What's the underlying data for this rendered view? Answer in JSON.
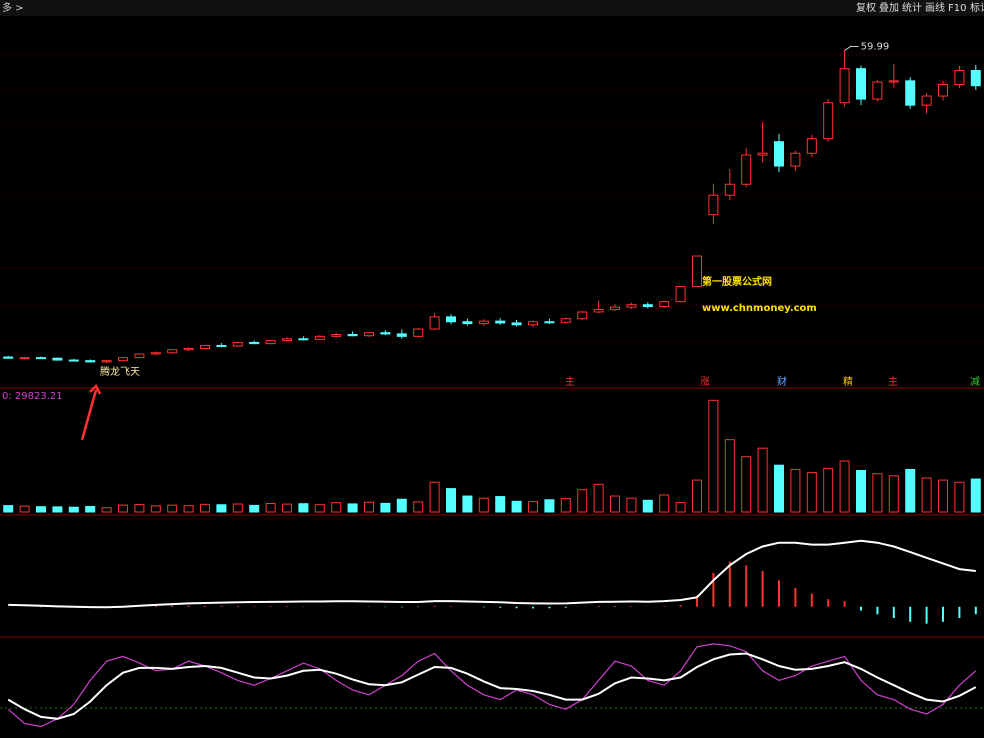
{
  "toolbar": {
    "left": "多 >",
    "buttons": [
      "复权",
      "叠加",
      "统计",
      "画线",
      "F10",
      "标记"
    ]
  },
  "chart_data": [
    {
      "type": "candlestick",
      "max_label": "59.99",
      "signal_label": "腾龙飞天",
      "watermark": [
        "第一股票公式网",
        "www.chnmoney.com"
      ],
      "events": [
        "主",
        "涨",
        "财",
        "精",
        "主",
        "减"
      ],
      "up_color": "#ff3232",
      "down_color": "#54ffff",
      "ylim": [
        5,
        65
      ],
      "open": [
        9.6,
        9.4,
        9.5,
        9.4,
        9.1,
        9.0,
        8.8,
        9.0,
        9.5,
        10.1,
        10.3,
        10.8,
        11.0,
        11.5,
        11.4,
        12.0,
        11.8,
        12.3,
        12.6,
        12.5,
        13.0,
        13.3,
        13.1,
        13.6,
        13.4,
        13.0,
        14.2,
        16.2,
        15.4,
        15.1,
        15.5,
        15.2,
        14.9,
        15.4,
        15.3,
        15.9,
        17.0,
        17.4,
        17.8,
        18.2,
        17.9,
        18.7,
        21.2,
        33.0,
        36.2,
        38.0,
        42.8,
        45.0,
        41.0,
        43.1,
        45.5,
        51.4,
        57.0,
        52.0,
        54.8,
        55.0,
        51.0,
        52.5,
        54.4,
        56.7
      ],
      "high": [
        9.8,
        9.6,
        9.7,
        9.5,
        9.3,
        9.2,
        9.1,
        9.6,
        10.2,
        10.5,
        10.9,
        11.2,
        11.6,
        11.9,
        12.1,
        12.3,
        12.4,
        12.8,
        13.0,
        13.2,
        13.6,
        13.8,
        13.7,
        14.0,
        14.1,
        14.4,
        16.8,
        16.6,
        15.9,
        15.8,
        16.0,
        15.7,
        15.6,
        15.9,
        16.1,
        17.2,
        18.9,
        18.3,
        18.5,
        18.6,
        18.9,
        21.3,
        26.2,
        38.1,
        40.5,
        44.0,
        48.2,
        46.3,
        43.5,
        46.1,
        52.0,
        59.99,
        57.5,
        55.2,
        57.8,
        55.6,
        53.0,
        55.0,
        57.5,
        57.6
      ],
      "low": [
        9.3,
        9.2,
        9.3,
        9.0,
        8.9,
        8.7,
        8.6,
        8.9,
        9.4,
        9.9,
        10.1,
        10.6,
        10.9,
        11.2,
        11.3,
        11.7,
        11.7,
        12.1,
        12.3,
        12.4,
        12.8,
        13.0,
        12.9,
        13.2,
        12.6,
        12.9,
        14.0,
        15.0,
        14.8,
        14.7,
        14.9,
        14.6,
        14.5,
        15.0,
        15.1,
        15.7,
        16.8,
        17.2,
        17.5,
        17.6,
        17.7,
        18.6,
        21.2,
        31.5,
        35.4,
        37.5,
        41.6,
        40.0,
        40.2,
        42.5,
        45.0,
        50.8,
        51.0,
        51.6,
        53.9,
        50.4,
        49.6,
        51.8,
        53.8,
        53.5
      ],
      "close": [
        9.4,
        9.5,
        9.4,
        9.1,
        9.0,
        8.8,
        9.0,
        9.5,
        10.1,
        10.3,
        10.8,
        11.0,
        11.5,
        11.4,
        12.0,
        11.8,
        12.3,
        12.6,
        12.5,
        13.0,
        13.3,
        13.1,
        13.6,
        13.4,
        13.0,
        14.2,
        16.2,
        15.4,
        15.1,
        15.5,
        15.2,
        14.9,
        15.4,
        15.3,
        15.9,
        17.0,
        17.4,
        17.8,
        18.2,
        17.9,
        18.7,
        21.2,
        26.2,
        36.2,
        38.0,
        42.8,
        43.1,
        41.0,
        43.1,
        45.5,
        51.4,
        57.0,
        52.0,
        54.8,
        55.0,
        51.0,
        52.5,
        54.4,
        56.7,
        54.2
      ]
    },
    {
      "type": "volume",
      "label": "0: 29823.21",
      "ylim": [
        0,
        110000
      ],
      "values": [
        6000,
        5500,
        5000,
        4800,
        4500,
        5200,
        4000,
        6500,
        7000,
        5800,
        6400,
        5900,
        7200,
        6800,
        7500,
        6200,
        8000,
        7400,
        7800,
        6900,
        8800,
        7600,
        9200,
        8100,
        12000,
        9500,
        28000,
        22000,
        15000,
        13000,
        14500,
        10000,
        9800,
        11500,
        12600,
        21000,
        26000,
        15000,
        13000,
        11000,
        16000,
        9000,
        30000,
        105000,
        68000,
        52000,
        60000,
        44000,
        40000,
        37000,
        41000,
        48000,
        39000,
        36000,
        34000,
        40000,
        32000,
        30000,
        28000,
        31000
      ]
    },
    {
      "type": "macd",
      "ylim": [
        -1.5,
        4.5
      ],
      "line_color": "#ffffff",
      "pos_color": "#ff3232",
      "neg_color": "#54ffff",
      "dif": [
        0.1,
        0.08,
        0.05,
        0.02,
        0.0,
        -0.02,
        -0.03,
        0.0,
        0.05,
        0.1,
        0.14,
        0.18,
        0.2,
        0.22,
        0.24,
        0.25,
        0.26,
        0.27,
        0.28,
        0.28,
        0.29,
        0.29,
        0.28,
        0.27,
        0.25,
        0.25,
        0.3,
        0.3,
        0.28,
        0.26,
        0.24,
        0.2,
        0.18,
        0.17,
        0.18,
        0.22,
        0.26,
        0.27,
        0.28,
        0.27,
        0.3,
        0.36,
        0.5,
        1.4,
        2.2,
        2.8,
        3.2,
        3.4,
        3.4,
        3.3,
        3.3,
        3.4,
        3.5,
        3.4,
        3.2,
        2.9,
        2.6,
        2.3,
        2.0,
        1.9
      ],
      "hist": [
        0.02,
        0.01,
        -0.02,
        -0.03,
        -0.04,
        -0.05,
        -0.04,
        0.0,
        0.03,
        0.05,
        0.06,
        0.06,
        0.05,
        0.05,
        0.04,
        0.03,
        0.03,
        0.03,
        0.02,
        0.01,
        0.01,
        0.0,
        -0.01,
        -0.02,
        -0.03,
        -0.02,
        0.05,
        0.03,
        0.0,
        -0.03,
        -0.05,
        -0.08,
        -0.09,
        -0.08,
        -0.05,
        0.0,
        0.04,
        0.04,
        0.03,
        0.01,
        0.03,
        0.08,
        0.6,
        1.8,
        2.4,
        2.2,
        1.9,
        1.4,
        1.0,
        0.7,
        0.4,
        0.3,
        -0.2,
        -0.4,
        -0.6,
        -0.8,
        -0.9,
        -0.8,
        -0.6,
        -0.4
      ]
    },
    {
      "type": "line",
      "ylim": [
        0,
        100
      ],
      "series": [
        {
          "color": "#d040d0",
          "values": [
            30,
            15,
            12,
            20,
            35,
            60,
            80,
            85,
            78,
            70,
            72,
            80,
            75,
            68,
            60,
            55,
            62,
            70,
            78,
            72,
            60,
            50,
            45,
            55,
            65,
            80,
            88,
            70,
            55,
            45,
            40,
            50,
            45,
            35,
            30,
            40,
            60,
            80,
            75,
            60,
            55,
            70,
            95,
            98,
            96,
            90,
            70,
            60,
            65,
            75,
            80,
            85,
            60,
            45,
            40,
            30,
            25,
            35,
            55,
            70
          ]
        },
        {
          "color": "#ffffff",
          "values": [
            40,
            30,
            22,
            20,
            25,
            38,
            55,
            68,
            73,
            73,
            72,
            74,
            75,
            73,
            68,
            63,
            62,
            65,
            70,
            71,
            67,
            61,
            56,
            55,
            58,
            66,
            74,
            73,
            67,
            59,
            52,
            51,
            49,
            45,
            40,
            40,
            46,
            57,
            63,
            62,
            60,
            63,
            74,
            82,
            87,
            88,
            82,
            75,
            71,
            72,
            75,
            79,
            72,
            63,
            55,
            47,
            40,
            38,
            44,
            53
          ]
        }
      ]
    }
  ]
}
